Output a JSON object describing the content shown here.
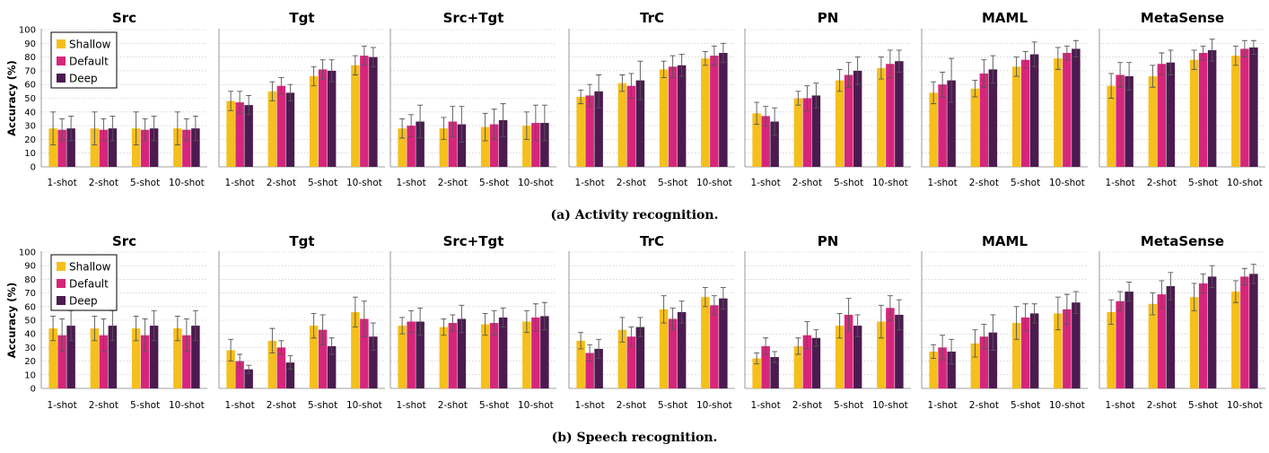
{
  "colors": {
    "Shallow": "#f5bf1c",
    "Default": "#d6267c",
    "Deep": "#4b1b4f"
  },
  "legend": [
    "Shallow",
    "Default",
    "Deep"
  ],
  "chart_data": [
    {
      "type": "bar",
      "caption": "(a) Activity recognition.",
      "ylabel": "Accuracy (%)",
      "ylim": [
        0,
        100
      ],
      "yticks": [
        0,
        10,
        20,
        30,
        40,
        50,
        60,
        70,
        80,
        90,
        100
      ],
      "categories": [
        "1-shot",
        "2-shot",
        "5-shot",
        "10-shot"
      ],
      "panels": [
        {
          "title": "Src",
          "series": [
            {
              "name": "Shallow",
              "values": [
                28,
                28,
                28,
                28
              ],
              "err": [
                12,
                12,
                12,
                12
              ]
            },
            {
              "name": "Default",
              "values": [
                27,
                27,
                27,
                27
              ],
              "err": [
                8,
                8,
                8,
                8
              ]
            },
            {
              "name": "Deep",
              "values": [
                28,
                28,
                28,
                28
              ],
              "err": [
                9,
                9,
                9,
                9
              ]
            }
          ]
        },
        {
          "title": "Tgt",
          "series": [
            {
              "name": "Shallow",
              "values": [
                48,
                55,
                66,
                74
              ],
              "err": [
                7,
                7,
                7,
                7
              ]
            },
            {
              "name": "Default",
              "values": [
                47,
                59,
                71,
                81
              ],
              "err": [
                8,
                6,
                7,
                7
              ]
            },
            {
              "name": "Deep",
              "values": [
                45,
                54,
                70,
                80
              ],
              "err": [
                7,
                6,
                8,
                7
              ]
            }
          ]
        },
        {
          "title": "Src+Tgt",
          "series": [
            {
              "name": "Shallow",
              "values": [
                28,
                28,
                29,
                30
              ],
              "err": [
                7,
                8,
                10,
                10
              ]
            },
            {
              "name": "Default",
              "values": [
                30,
                33,
                31,
                32
              ],
              "err": [
                8,
                11,
                11,
                13
              ]
            },
            {
              "name": "Deep",
              "values": [
                33,
                31,
                34,
                32
              ],
              "err": [
                12,
                13,
                12,
                13
              ]
            }
          ]
        },
        {
          "title": "TrC",
          "series": [
            {
              "name": "Shallow",
              "values": [
                51,
                61,
                71,
                79
              ],
              "err": [
                5,
                6,
                6,
                5
              ]
            },
            {
              "name": "Default",
              "values": [
                52,
                59,
                73,
                81
              ],
              "err": [
                8,
                9,
                8,
                7
              ]
            },
            {
              "name": "Deep",
              "values": [
                55,
                63,
                74,
                83
              ],
              "err": [
                12,
                14,
                8,
                7
              ]
            }
          ]
        },
        {
          "title": "PN",
          "series": [
            {
              "name": "Shallow",
              "values": [
                39,
                50,
                63,
                72
              ],
              "err": [
                8,
                5,
                8,
                8
              ]
            },
            {
              "name": "Default",
              "values": [
                37,
                50,
                67,
                75
              ],
              "err": [
                7,
                9,
                9,
                10
              ]
            },
            {
              "name": "Deep",
              "values": [
                33,
                52,
                70,
                77
              ],
              "err": [
                10,
                9,
                10,
                8
              ]
            }
          ]
        },
        {
          "title": "MAML",
          "series": [
            {
              "name": "Shallow",
              "values": [
                54,
                57,
                73,
                79
              ],
              "err": [
                8,
                6,
                7,
                8
              ]
            },
            {
              "name": "Default",
              "values": [
                60,
                68,
                78,
                83
              ],
              "err": [
                9,
                10,
                6,
                5
              ]
            },
            {
              "name": "Deep",
              "values": [
                63,
                71,
                82,
                86
              ],
              "err": [
                16,
                10,
                9,
                6
              ]
            }
          ]
        },
        {
          "title": "MetaSense",
          "series": [
            {
              "name": "Shallow",
              "values": [
                59,
                66,
                78,
                81
              ],
              "err": [
                9,
                8,
                7,
                7
              ]
            },
            {
              "name": "Default",
              "values": [
                67,
                75,
                83,
                86
              ],
              "err": [
                9,
                8,
                5,
                6
              ]
            },
            {
              "name": "Deep",
              "values": [
                66,
                76,
                85,
                87
              ],
              "err": [
                10,
                9,
                8,
                5
              ]
            }
          ]
        }
      ]
    },
    {
      "type": "bar",
      "caption": "(b) Speech recognition.",
      "ylabel": "Accuracy (%)",
      "ylim": [
        0,
        100
      ],
      "yticks": [
        0,
        10,
        20,
        30,
        40,
        50,
        60,
        70,
        80,
        90,
        100
      ],
      "categories": [
        "1-shot",
        "2-shot",
        "5-shot",
        "10-shot"
      ],
      "panels": [
        {
          "title": "Src",
          "series": [
            {
              "name": "Shallow",
              "values": [
                44,
                44,
                44,
                44
              ],
              "err": [
                9,
                9,
                9,
                9
              ]
            },
            {
              "name": "Default",
              "values": [
                39,
                39,
                39,
                39
              ],
              "err": [
                12,
                12,
                12,
                12
              ]
            },
            {
              "name": "Deep",
              "values": [
                46,
                46,
                46,
                46
              ],
              "err": [
                11,
                11,
                11,
                11
              ]
            }
          ]
        },
        {
          "title": "Tgt",
          "series": [
            {
              "name": "Shallow",
              "values": [
                28,
                35,
                46,
                56
              ],
              "err": [
                8,
                9,
                9,
                11
              ]
            },
            {
              "name": "Default",
              "values": [
                20,
                30,
                43,
                51
              ],
              "err": [
                5,
                5,
                11,
                13
              ]
            },
            {
              "name": "Deep",
              "values": [
                14,
                19,
                31,
                38
              ],
              "err": [
                3,
                5,
                6,
                10
              ]
            }
          ]
        },
        {
          "title": "Src+Tgt",
          "series": [
            {
              "name": "Shallow",
              "values": [
                46,
                45,
                47,
                49
              ],
              "err": [
                6,
                6,
                8,
                8
              ]
            },
            {
              "name": "Default",
              "values": [
                49,
                48,
                48,
                52
              ],
              "err": [
                8,
                6,
                9,
                10
              ]
            },
            {
              "name": "Deep",
              "values": [
                49,
                51,
                52,
                53
              ],
              "err": [
                10,
                10,
                7,
                10
              ]
            }
          ]
        },
        {
          "title": "TrC",
          "series": [
            {
              "name": "Shallow",
              "values": [
                35,
                43,
                58,
                67
              ],
              "err": [
                6,
                9,
                10,
                7
              ]
            },
            {
              "name": "Default",
              "values": [
                26,
                38,
                51,
                61
              ],
              "err": [
                6,
                7,
                8,
                7
              ]
            },
            {
              "name": "Deep",
              "values": [
                29,
                45,
                56,
                66
              ],
              "err": [
                7,
                7,
                8,
                8
              ]
            }
          ]
        },
        {
          "title": "PN",
          "series": [
            {
              "name": "Shallow",
              "values": [
                22,
                31,
                46,
                49
              ],
              "err": [
                4,
                6,
                9,
                12
              ]
            },
            {
              "name": "Default",
              "values": [
                31,
                39,
                54,
                59
              ],
              "err": [
                6,
                10,
                12,
                9
              ]
            },
            {
              "name": "Deep",
              "values": [
                23,
                37,
                46,
                54
              ],
              "err": [
                4,
                6,
                8,
                11
              ]
            }
          ]
        },
        {
          "title": "MAML",
          "series": [
            {
              "name": "Shallow",
              "values": [
                27,
                33,
                48,
                55
              ],
              "err": [
                5,
                10,
                12,
                12
              ]
            },
            {
              "name": "Default",
              "values": [
                30,
                38,
                52,
                58
              ],
              "err": [
                9,
                9,
                10,
                11
              ]
            },
            {
              "name": "Deep",
              "values": [
                27,
                41,
                55,
                63
              ],
              "err": [
                9,
                13,
                7,
                8
              ]
            }
          ]
        },
        {
          "title": "MetaSense",
          "series": [
            {
              "name": "Shallow",
              "values": [
                56,
                62,
                67,
                71
              ],
              "err": [
                9,
                8,
                10,
                8
              ]
            },
            {
              "name": "Default",
              "values": [
                64,
                69,
                77,
                82
              ],
              "err": [
                7,
                10,
                7,
                6
              ]
            },
            {
              "name": "Deep",
              "values": [
                71,
                75,
                82,
                84
              ],
              "err": [
                7,
                10,
                8,
                7
              ]
            }
          ]
        }
      ]
    }
  ]
}
